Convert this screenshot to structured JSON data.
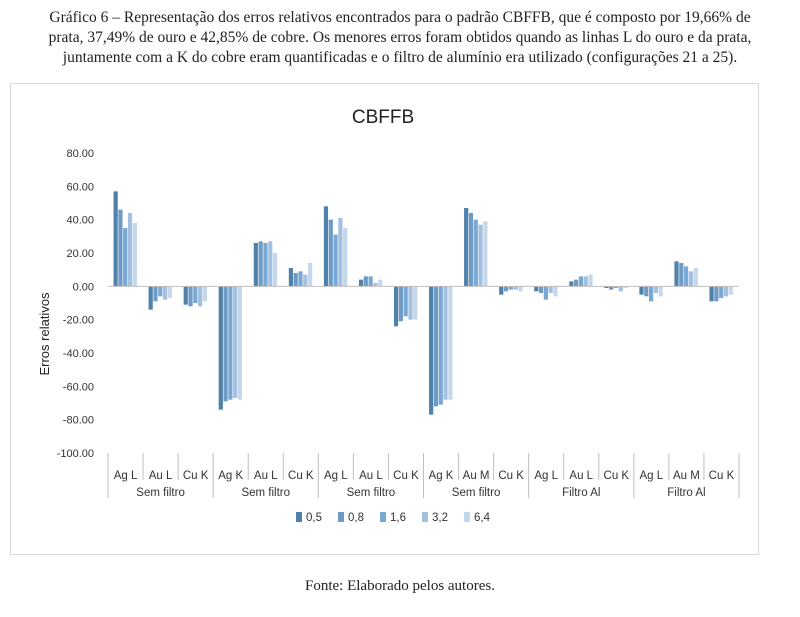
{
  "caption": {
    "line1": "Gráfico 6 – Representação dos erros relativos encontrados para o padrão CBFFB, que é composto por 19,66% de",
    "line2": "prata, 37,49% de ouro e 42,85% de cobre. Os menores erros foram obtidos quando as linhas L do ouro e da prata,",
    "line3": "juntamente com a K do cobre eram quantificadas e o filtro de alumínio era utilizado (configurações 21 a 25)."
  },
  "source": "Fonte: Elaborado pelos autores.",
  "chart_data": {
    "type": "bar",
    "title": "CBFFB",
    "ylabel": "Erros relativos",
    "xlabel": "",
    "ylim": [
      -100,
      80
    ],
    "yticks": [
      "80.00",
      "60.00",
      "40.00",
      "20.00",
      "0.00",
      "-20.00",
      "-40.00",
      "-60.00",
      "-80.00",
      "-100.00"
    ],
    "grid": false,
    "legend_position": "bottom",
    "groups": [
      "Sem filtro",
      "Sem filtro",
      "Sem filtro",
      "Sem filtro",
      "Filtro Al",
      "Filtro Al"
    ],
    "categories": [
      "Ag L",
      "Au L",
      "Cu K",
      "Ag K",
      "Au L",
      "Cu K",
      "Ag L",
      "Au L",
      "Cu K",
      "Ag K",
      "Au M",
      "Cu K",
      "Ag L",
      "Au L",
      "Cu K",
      "Ag L",
      "Au M",
      "Cu K"
    ],
    "series": [
      {
        "name": "0,5",
        "color": "#4f81a9",
        "values": [
          57,
          -14,
          -11,
          -74,
          26,
          11,
          48,
          4,
          -24,
          -77,
          47,
          -5,
          -3,
          3,
          -1,
          -5,
          15,
          -9
        ]
      },
      {
        "name": "0,8",
        "color": "#6e9bc6",
        "values": [
          46,
          -9,
          -12,
          -69,
          27,
          8,
          40,
          6,
          -21,
          -72,
          44,
          -3,
          -4,
          4,
          -2,
          -6,
          14,
          -9
        ]
      },
      {
        "name": "1,6",
        "color": "#7aa8d4",
        "values": [
          35,
          -6,
          -10,
          -68,
          26,
          9,
          31,
          6,
          -18,
          -71,
          40,
          -2,
          -8,
          6,
          -1,
          -9,
          12,
          -7
        ]
      },
      {
        "name": "3,2",
        "color": "#a3c0e0",
        "values": [
          44,
          -8,
          -12,
          -67,
          27,
          7,
          41,
          2,
          -20,
          -68,
          37,
          -2,
          -4,
          6,
          -3,
          -4,
          9,
          -6
        ]
      },
      {
        "name": "6,4",
        "color": "#c5d7eb",
        "values": [
          38,
          -7,
          -9,
          -68,
          20,
          14,
          35,
          4,
          -20,
          -68,
          39,
          -3,
          -6,
          7,
          -1,
          -6,
          11,
          -5
        ]
      }
    ]
  }
}
